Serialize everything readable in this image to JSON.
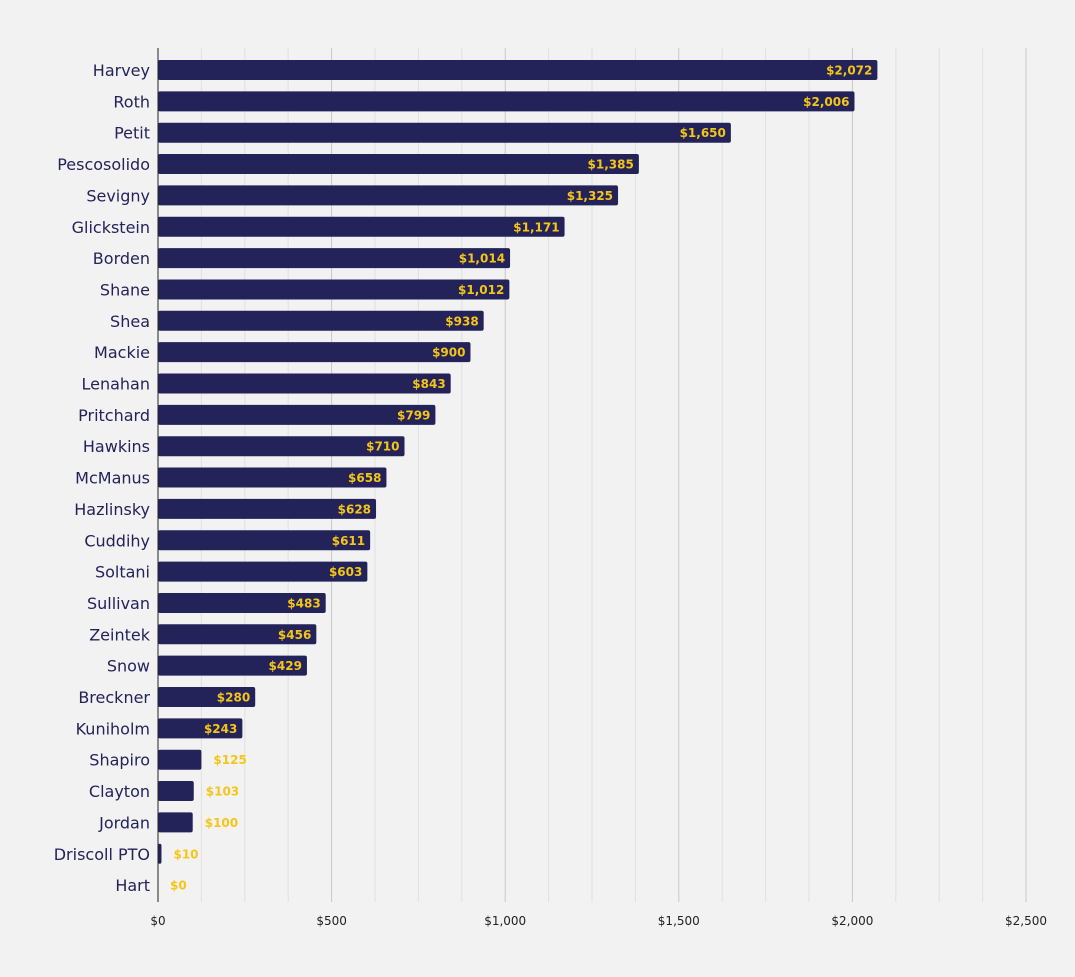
{
  "chart_data": {
    "type": "bar",
    "orientation": "horizontal",
    "title": "",
    "xlabel": "",
    "ylabel": "",
    "categories": [
      "Harvey",
      "Roth",
      "Petit",
      "Pescosolido",
      "Sevigny",
      "Glickstein",
      "Borden",
      "Shane",
      "Shea",
      "Mackie",
      "Lenahan",
      "Pritchard",
      "Hawkins",
      "McManus",
      "Hazlinsky",
      "Cuddihy",
      "Soltani",
      "Sullivan",
      "Zeintek",
      "Snow",
      "Breckner",
      "Kuniholm",
      "Shapiro",
      "Clayton",
      "Jordan",
      "Driscoll PTO",
      "Hart"
    ],
    "values": [
      2072,
      2006,
      1650,
      1385,
      1325,
      1171,
      1014,
      1012,
      938,
      900,
      843,
      799,
      710,
      658,
      628,
      611,
      603,
      483,
      456,
      429,
      280,
      243,
      125,
      103,
      100,
      10,
      0
    ],
    "data_labels": [
      "$2,072",
      "$2,006",
      "$1,650",
      "$1,385",
      "$1,325",
      "$1,171",
      "$1,014",
      "$1,012",
      "$938",
      "$900",
      "$843",
      "$799",
      "$710",
      "$658",
      "$628",
      "$611",
      "$603",
      "$483",
      "$456",
      "$429",
      "$280",
      "$243",
      "$125",
      "$103",
      "$100",
      "$10",
      "$0"
    ],
    "xlim": [
      0,
      2500
    ],
    "x_ticks": [
      0,
      500,
      1000,
      1500,
      2000,
      2500
    ],
    "x_tick_labels": [
      "$0",
      "$500",
      "$1,000",
      "$1,500",
      "$2,000",
      "$2,500"
    ],
    "grid": true,
    "legend": "none",
    "colors": {
      "bar": "#23235a",
      "label": "#f5c518",
      "background": "#f2f2f2",
      "gridline": "#c8c8c8",
      "minor_gridline": "#e0e0e0",
      "category_text": "#23235a"
    }
  }
}
